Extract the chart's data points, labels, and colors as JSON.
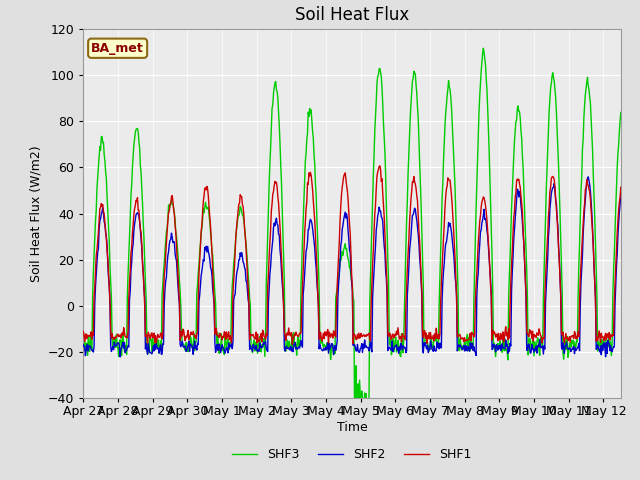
{
  "title": "Soil Heat Flux",
  "ylabel": "Soil Heat Flux (W/m2)",
  "xlabel": "Time",
  "ylim": [
    -40,
    120
  ],
  "yticks": [
    -40,
    -20,
    0,
    20,
    40,
    60,
    80,
    100,
    120
  ],
  "fig_bg": "#e0e0e0",
  "plot_bg": "#ebebeb",
  "grid_color": "#ffffff",
  "line_colors": {
    "SHF1": "#cc0000",
    "SHF2": "#0000cc",
    "SHF3": "#00cc00"
  },
  "station_label": "BA_met",
  "xtick_labels": [
    "Apr 27",
    "Apr 28",
    "Apr 29",
    "Apr 30",
    "May 1",
    "May 2",
    "May 3",
    "May 4",
    "May 5",
    "May 6",
    "May 7",
    "May 8",
    "May 9",
    "May 10",
    "May 11",
    "May 12"
  ],
  "amp1": [
    43,
    45,
    46,
    52,
    47,
    54,
    57,
    57,
    61,
    55,
    55,
    47,
    55,
    56,
    53,
    52
  ],
  "amp2": [
    41,
    41,
    30,
    25,
    22,
    37,
    36,
    40,
    42,
    42,
    35,
    40,
    50,
    53,
    55,
    52
  ],
  "amp3": [
    72,
    77,
    45,
    44,
    42,
    96,
    84,
    25,
    103,
    101,
    95,
    110,
    85,
    100,
    97,
    85
  ],
  "night1": -13,
  "night2": -18,
  "night3": -17,
  "n_days": 15.5
}
